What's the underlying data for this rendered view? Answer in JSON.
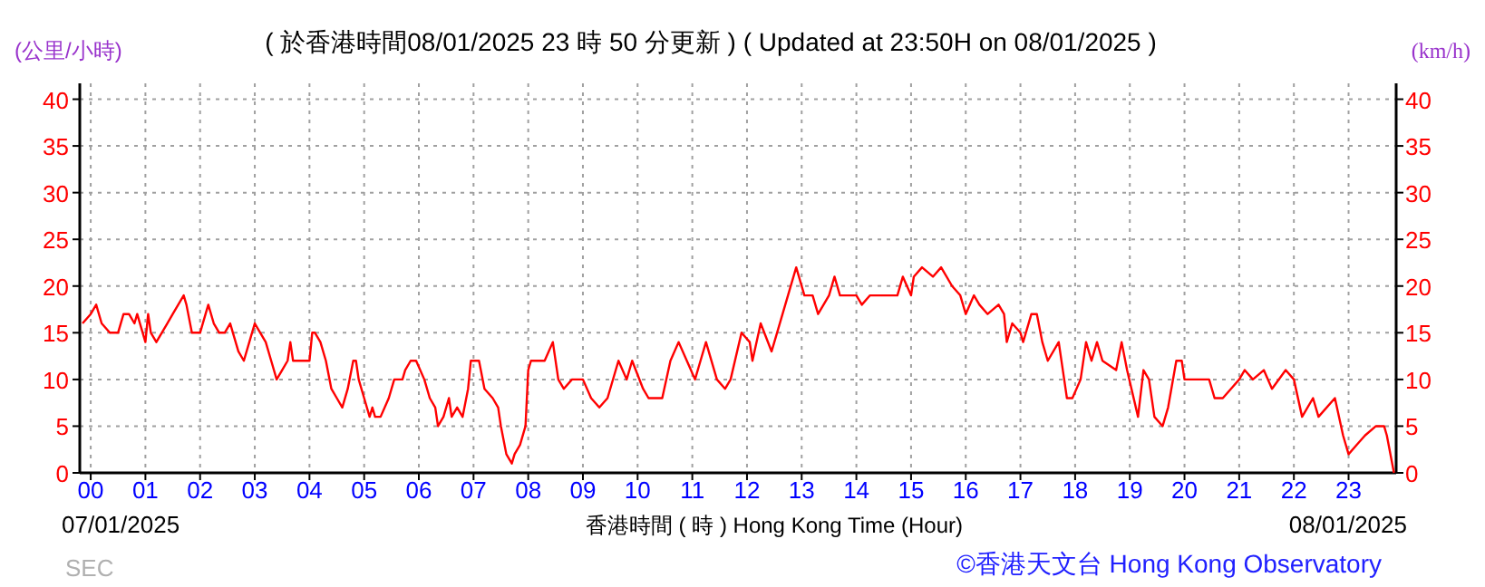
{
  "chart_data": {
    "type": "line",
    "title": "( 於香港時間08/01/2025 23 時 50 分更新 ) ( Updated at 23:50H on 08/01/2025 )",
    "xlabel": "香港時間 ( 時 )  Hong Kong Time (Hour)",
    "ylabel": "(公里/小時)",
    "y2label": "(km/h)",
    "annotations": [
      "07/01/2025",
      "08/01/2025",
      "SEC",
      "©香港天文台 Hong Kong Observatory"
    ],
    "xlim": [
      -0.2,
      23.87
    ],
    "ylim": [
      0,
      41.7
    ],
    "y2lim": [
      0,
      41.7
    ],
    "xticks": [
      {
        "value": 0,
        "label": "00"
      },
      {
        "value": 1,
        "label": "01"
      },
      {
        "value": 2,
        "label": "02"
      },
      {
        "value": 3,
        "label": "03"
      },
      {
        "value": 4,
        "label": "04"
      },
      {
        "value": 5,
        "label": "05"
      },
      {
        "value": 6,
        "label": "06"
      },
      {
        "value": 7,
        "label": "07"
      },
      {
        "value": 8,
        "label": "08"
      },
      {
        "value": 9,
        "label": "09"
      },
      {
        "value": 10,
        "label": "10"
      },
      {
        "value": 11,
        "label": "11"
      },
      {
        "value": 12,
        "label": "12"
      },
      {
        "value": 13,
        "label": "13"
      },
      {
        "value": 14,
        "label": "14"
      },
      {
        "value": 15,
        "label": "15"
      },
      {
        "value": 16,
        "label": "16"
      },
      {
        "value": 17,
        "label": "17"
      },
      {
        "value": 18,
        "label": "18"
      },
      {
        "value": 19,
        "label": "19"
      },
      {
        "value": 20,
        "label": "20"
      },
      {
        "value": 21,
        "label": "21"
      },
      {
        "value": 22,
        "label": "22"
      },
      {
        "value": 23,
        "label": "23"
      }
    ],
    "yticks": [
      0,
      5,
      10,
      15,
      20,
      25,
      30,
      35,
      40
    ],
    "y2ticks": [
      0,
      5,
      10,
      15,
      20,
      25,
      30,
      35,
      40
    ],
    "grid": true,
    "line_style": "solid",
    "series": [
      {
        "color": "#ff0000",
        "x": [
          -0.15,
          0.0,
          0.1,
          0.2,
          0.35,
          0.5,
          0.6,
          0.7,
          0.8,
          0.85,
          0.95,
          1.0,
          1.05,
          1.1,
          1.2,
          1.3,
          1.4,
          1.5,
          1.6,
          1.7,
          1.75,
          1.85,
          2.0,
          2.1,
          2.15,
          2.25,
          2.35,
          2.45,
          2.55,
          2.6,
          2.7,
          2.8,
          2.9,
          3.0,
          3.1,
          3.2,
          3.3,
          3.4,
          3.5,
          3.6,
          3.65,
          3.7,
          3.8,
          4.0,
          4.05,
          4.1,
          4.2,
          4.3,
          4.4,
          4.5,
          4.6,
          4.7,
          4.8,
          4.85,
          4.9,
          5.0,
          5.1,
          5.15,
          5.2,
          5.3,
          5.45,
          5.55,
          5.7,
          5.75,
          5.85,
          5.95,
          6.1,
          6.2,
          6.3,
          6.35,
          6.45,
          6.55,
          6.6,
          6.7,
          6.8,
          6.9,
          6.95,
          7.1,
          7.2,
          7.35,
          7.45,
          7.5,
          7.6,
          7.7,
          7.75,
          7.85,
          7.95,
          8.0,
          8.05,
          8.3,
          8.45,
          8.55,
          8.65,
          8.8,
          9.0,
          9.15,
          9.3,
          9.45,
          9.65,
          9.8,
          9.9,
          10.1,
          10.2,
          10.45,
          10.6,
          10.75,
          10.9,
          11.05,
          11.15,
          11.25,
          11.45,
          11.6,
          11.7,
          11.9,
          12.05,
          12.1,
          12.25,
          12.45,
          12.55,
          12.7,
          12.9,
          13.05,
          13.2,
          13.3,
          13.5,
          13.6,
          13.7,
          14.0,
          14.1,
          14.25,
          14.75,
          14.85,
          15.0,
          15.05,
          15.2,
          15.4,
          15.55,
          15.75,
          15.9,
          16.0,
          16.15,
          16.25,
          16.4,
          16.6,
          16.7,
          16.75,
          16.85,
          17.0,
          17.05,
          17.2,
          17.3,
          17.4,
          17.5,
          17.7,
          17.8,
          17.85,
          17.95,
          18.1,
          18.2,
          18.3,
          18.4,
          18.5,
          18.75,
          18.85,
          18.95,
          19.15,
          19.25,
          19.35,
          19.45,
          19.6,
          19.7,
          19.85,
          19.95,
          20.0,
          20.45,
          20.55,
          20.7,
          20.85,
          21.0,
          21.1,
          21.25,
          21.45,
          21.6,
          21.85,
          22.0,
          22.15,
          22.35,
          22.45,
          22.75,
          22.9,
          23.0,
          23.15,
          23.3,
          23.5,
          23.65,
          23.7,
          23.83
        ],
        "values": [
          16,
          17,
          18,
          16,
          15,
          15,
          17,
          17,
          16,
          17,
          15,
          14,
          17,
          15,
          14,
          15,
          16,
          17,
          18,
          19,
          18,
          15,
          15,
          17,
          18,
          16,
          15,
          15,
          16,
          15,
          13,
          12,
          14,
          16,
          15,
          14,
          12,
          10,
          11,
          12,
          14,
          12,
          12,
          12,
          15,
          15,
          14,
          12,
          9,
          8,
          7,
          9,
          12,
          12,
          10,
          8,
          6,
          7,
          6,
          6,
          8,
          10,
          10,
          11,
          12,
          12,
          10,
          8,
          7,
          5,
          6,
          8,
          6,
          7,
          6,
          9,
          12,
          12,
          9,
          8,
          7,
          5,
          2,
          1,
          2,
          3,
          5,
          11,
          12,
          12,
          14,
          10,
          9,
          10,
          10,
          8,
          7,
          8,
          12,
          10,
          12,
          9,
          8,
          8,
          12,
          14,
          12,
          10,
          12,
          14,
          10,
          9,
          10,
          15,
          14,
          12,
          16,
          13,
          15,
          18,
          22,
          19,
          19,
          17,
          19,
          21,
          19,
          19,
          18,
          19,
          19,
          21,
          19,
          21,
          22,
          21,
          22,
          20,
          19,
          17,
          19,
          18,
          17,
          18,
          17,
          14,
          16,
          15,
          14,
          17,
          17,
          14,
          12,
          14,
          10,
          8,
          8,
          10,
          14,
          12,
          14,
          12,
          11,
          14,
          11,
          6,
          11,
          10,
          6,
          5,
          7,
          12,
          12,
          10,
          10,
          8,
          8,
          9,
          10,
          11,
          10,
          11,
          9,
          11,
          10,
          6,
          8,
          6,
          8,
          4,
          2,
          3,
          4,
          5,
          5,
          4,
          0
        ]
      }
    ]
  }
}
